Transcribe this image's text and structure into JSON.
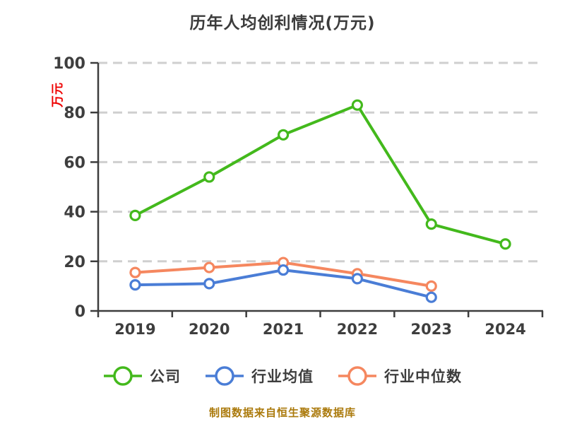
{
  "page": {
    "title": "历年人均创利情况(万元)",
    "y_axis_unit": "万元",
    "footer_note": "制图数据来自恒生聚源数据库"
  },
  "colors": {
    "title_text": "#3b3b3b",
    "axis": "#3d3d3d",
    "tick_label": "#3e3e3e",
    "grid": "#cfcfcf",
    "ylabel_red": "#ee0000",
    "footer_gold": "#ab7a0c",
    "company_green": "#43b91c",
    "mean_blue": "#4a7dd6",
    "median_orange": "#f5875f",
    "marker_fill": "#ffffff"
  },
  "chart_data": {
    "type": "line",
    "title": "历年人均创利情况(万元)",
    "categories": [
      "2019",
      "2020",
      "2021",
      "2022",
      "2023",
      "2024"
    ],
    "series": [
      {
        "name": "公司",
        "color": "#43b91c",
        "values": [
          38.5,
          54,
          71,
          83,
          35,
          27
        ]
      },
      {
        "name": "行业均值",
        "color": "#4a7dd6",
        "values": [
          10.5,
          11,
          16.5,
          13,
          5.5,
          null
        ]
      },
      {
        "name": "行业中位数",
        "color": "#f5875f",
        "values": [
          15.5,
          17.5,
          19.5,
          15,
          10,
          null
        ]
      }
    ],
    "xlabel": "",
    "ylabel": "万元",
    "ylim": [
      0,
      100
    ],
    "yticks": [
      0,
      20,
      40,
      60,
      80,
      100
    ],
    "grid": "horizontal dashed",
    "legend_position": "bottom"
  }
}
